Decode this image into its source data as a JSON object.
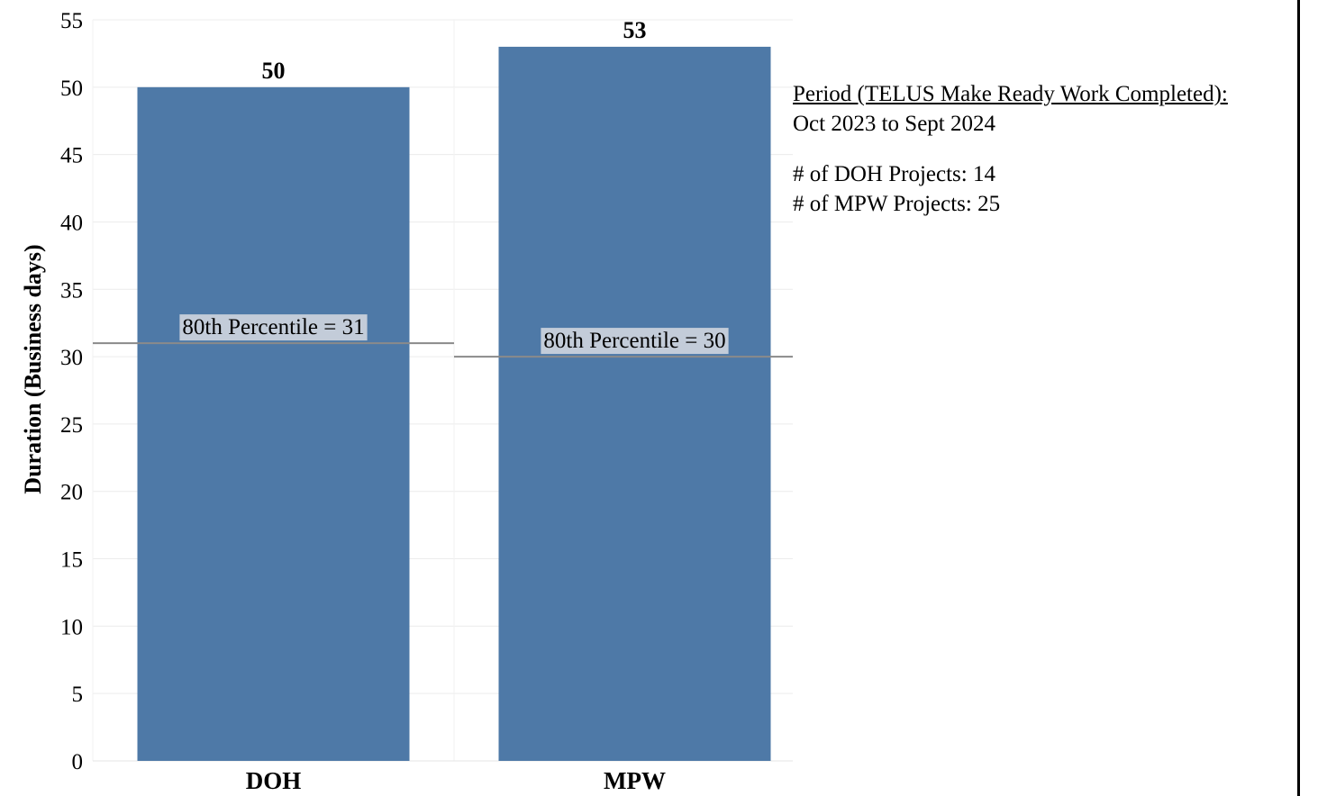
{
  "chart_data": {
    "type": "bar",
    "categories": [
      "DOH",
      "MPW"
    ],
    "values": [
      50,
      53
    ],
    "ylabel": "Duration (Business days)",
    "ylim": [
      0,
      55
    ],
    "yticks": [
      0,
      5,
      10,
      15,
      20,
      25,
      30,
      35,
      40,
      45,
      50,
      55
    ],
    "grid": true,
    "bar_color": "#4e79a7",
    "reference_lines": [
      {
        "category": "DOH",
        "value": 31,
        "label": "80th Percentile = 31"
      },
      {
        "category": "MPW",
        "value": 30,
        "label": "80th Percentile = 30"
      }
    ]
  },
  "side_info": {
    "period_title": "Period (TELUS Make Ready Work Completed):",
    "period_range": "Oct 2023 to Sept 2024",
    "doh_projects": "# of DOH Projects: 14",
    "mpw_projects": "# of MPW Projects: 25"
  }
}
